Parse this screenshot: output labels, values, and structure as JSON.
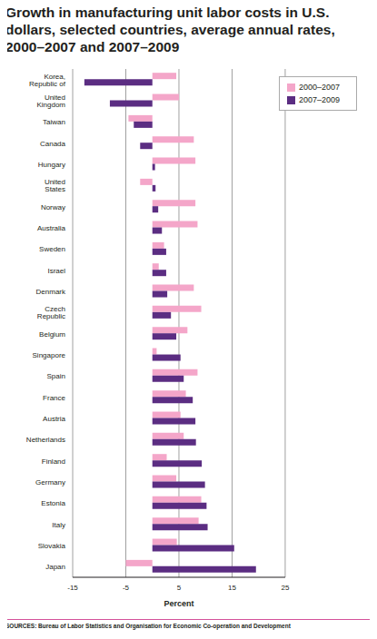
{
  "chart_data": {
    "type": "bar",
    "orientation": "horizontal",
    "title": "Growth in manufacturing unit labor costs in U.S. dollars, selected countries, average annual rates, 2000–2007 and 2007–2009",
    "x_label": "Percent",
    "source": "SOURCES: Bureau of Labor Statistics and Organisation for Economic Co-operation and Development",
    "categories": [
      "Korea, Republic of",
      "United Kingdom",
      "Taiwan",
      "Canada",
      "Hungary",
      "United States",
      "Norway",
      "Australia",
      "Sweden",
      "Israel",
      "Denmark",
      "Czech Republic",
      "Belgium",
      "Singapore",
      "Spain",
      "France",
      "Austria",
      "Netherlands",
      "Finland",
      "Germany",
      "Estonia",
      "Italy",
      "Slovakia",
      "Japan"
    ],
    "series": [
      {
        "name": "2000–2007",
        "color": "#f4a6c9",
        "values": [
          4.5,
          5.0,
          -4.5,
          7.8,
          8.1,
          -2.3,
          8.1,
          8.5,
          2.2,
          1.2,
          7.8,
          9.2,
          6.6,
          0.8,
          8.5,
          6.3,
          5.3,
          5.9,
          2.7,
          4.5,
          9.2,
          8.7,
          4.6,
          -5.0
        ]
      },
      {
        "name": "2007–2009",
        "color": "#5b2d82",
        "values": [
          -12.8,
          -8.0,
          -3.5,
          -2.3,
          0.5,
          0.6,
          1.1,
          1.8,
          2.6,
          2.6,
          2.8,
          3.5,
          4.5,
          5.3,
          5.9,
          7.6,
          8.1,
          8.2,
          9.3,
          9.9,
          10.2,
          10.4,
          15.4,
          19.5
        ]
      }
    ],
    "xlim": [
      -15,
      25
    ],
    "xticks": [
      -15,
      -5,
      5,
      15,
      25
    ],
    "grid": true,
    "legend": "upper right"
  }
}
